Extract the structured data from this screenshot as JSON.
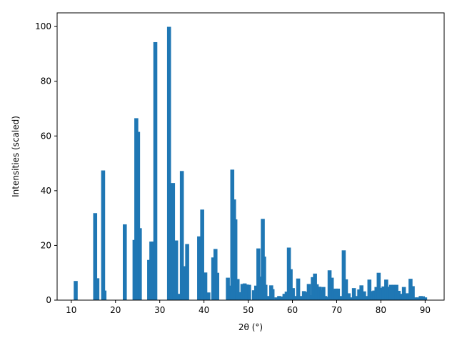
{
  "chart_data": {
    "type": "bar",
    "title": "",
    "xlabel": "2θ (°)",
    "ylabel": "Intensities (scaled)",
    "xlim": [
      6.8,
      94.3
    ],
    "ylim": [
      0,
      105
    ],
    "xticks": [
      10,
      20,
      30,
      40,
      50,
      60,
      70,
      80,
      90
    ],
    "yticks": [
      0,
      20,
      40,
      60,
      80,
      100
    ],
    "grid": false,
    "bar_width": 0.9,
    "color": "#1f77b4",
    "x": [
      11.0,
      15.4,
      15.9,
      17.2,
      17.5,
      22.1,
      24.3,
      24.7,
      25.1,
      25.5,
      27.6,
      28.1,
      28.4,
      29.0,
      32.1,
      32.5,
      33.0,
      33.3,
      33.7,
      34.2,
      35.0,
      35.5,
      36.2,
      38.9,
      39.6,
      40.3,
      41.0,
      42.1,
      42.6,
      43.0,
      45.4,
      46.1,
      46.4,
      46.8,
      47.1,
      47.6,
      48.1,
      48.7,
      49.2,
      49.7,
      50.2,
      51.3,
      51.8,
      52.3,
      52.8,
      53.3,
      53.6,
      53.9,
      54.4,
      55.2,
      55.5,
      56.4,
      57.0,
      57.6,
      58.2,
      58.7,
      59.2,
      59.6,
      60.1,
      60.5,
      61.3,
      62.1,
      62.6,
      63.2,
      63.7,
      64.3,
      64.6,
      65.1,
      65.5,
      66.1,
      66.5,
      67.0,
      67.4,
      67.9,
      68.4,
      68.9,
      69.3,
      69.8,
      70.3,
      71.0,
      71.6,
      72.1,
      72.7,
      73.4,
      73.9,
      74.5,
      75.1,
      75.6,
      76.2,
      76.8,
      77.4,
      78.0,
      78.5,
      79.0,
      79.5,
      80.1,
      80.6,
      81.2,
      81.8,
      82.3,
      82.9,
      83.5,
      84.0,
      84.6,
      85.2,
      85.7,
      86.3,
      86.7,
      87.2,
      87.8,
      88.4,
      89.0,
      89.5,
      90.0
    ],
    "values": [
      7.0,
      31.8,
      8.0,
      47.4,
      3.5,
      27.7,
      22.0,
      66.5,
      61.5,
      26.3,
      14.7,
      21.4,
      21.4,
      94.3,
      99.9,
      2.5,
      42.8,
      2.9,
      21.8,
      2.3,
      47.2,
      12.4,
      20.5,
      23.3,
      33.1,
      10.1,
      2.8,
      15.6,
      18.7,
      10.0,
      8.2,
      5.3,
      47.7,
      36.8,
      29.5,
      7.7,
      2.9,
      5.9,
      6.1,
      5.7,
      5.6,
      3.6,
      5.3,
      18.9,
      8.6,
      29.7,
      15.9,
      5.6,
      1.5,
      5.4,
      4.0,
      1.0,
      1.5,
      1.3,
      2.3,
      3.1,
      19.2,
      11.3,
      4.4,
      1.5,
      7.9,
      1.5,
      3.3,
      3.0,
      5.9,
      1.8,
      8.4,
      9.7,
      5.8,
      4.9,
      3.6,
      4.8,
      1.5,
      1.2,
      10.9,
      8.2,
      3.6,
      4.2,
      4.2,
      1.5,
      18.2,
      7.6,
      2.5,
      1.0,
      4.4,
      1.5,
      3.9,
      5.4,
      3.2,
      1.5,
      7.5,
      3.3,
      3.5,
      4.8,
      10.0,
      4.5,
      5.0,
      7.5,
      4.9,
      5.6,
      5.6,
      5.6,
      3.4,
      2.3,
      4.8,
      2.5,
      2.5,
      7.8,
      5.1,
      1.0,
      1.0,
      1.5,
      1.4,
      1.0
    ]
  }
}
